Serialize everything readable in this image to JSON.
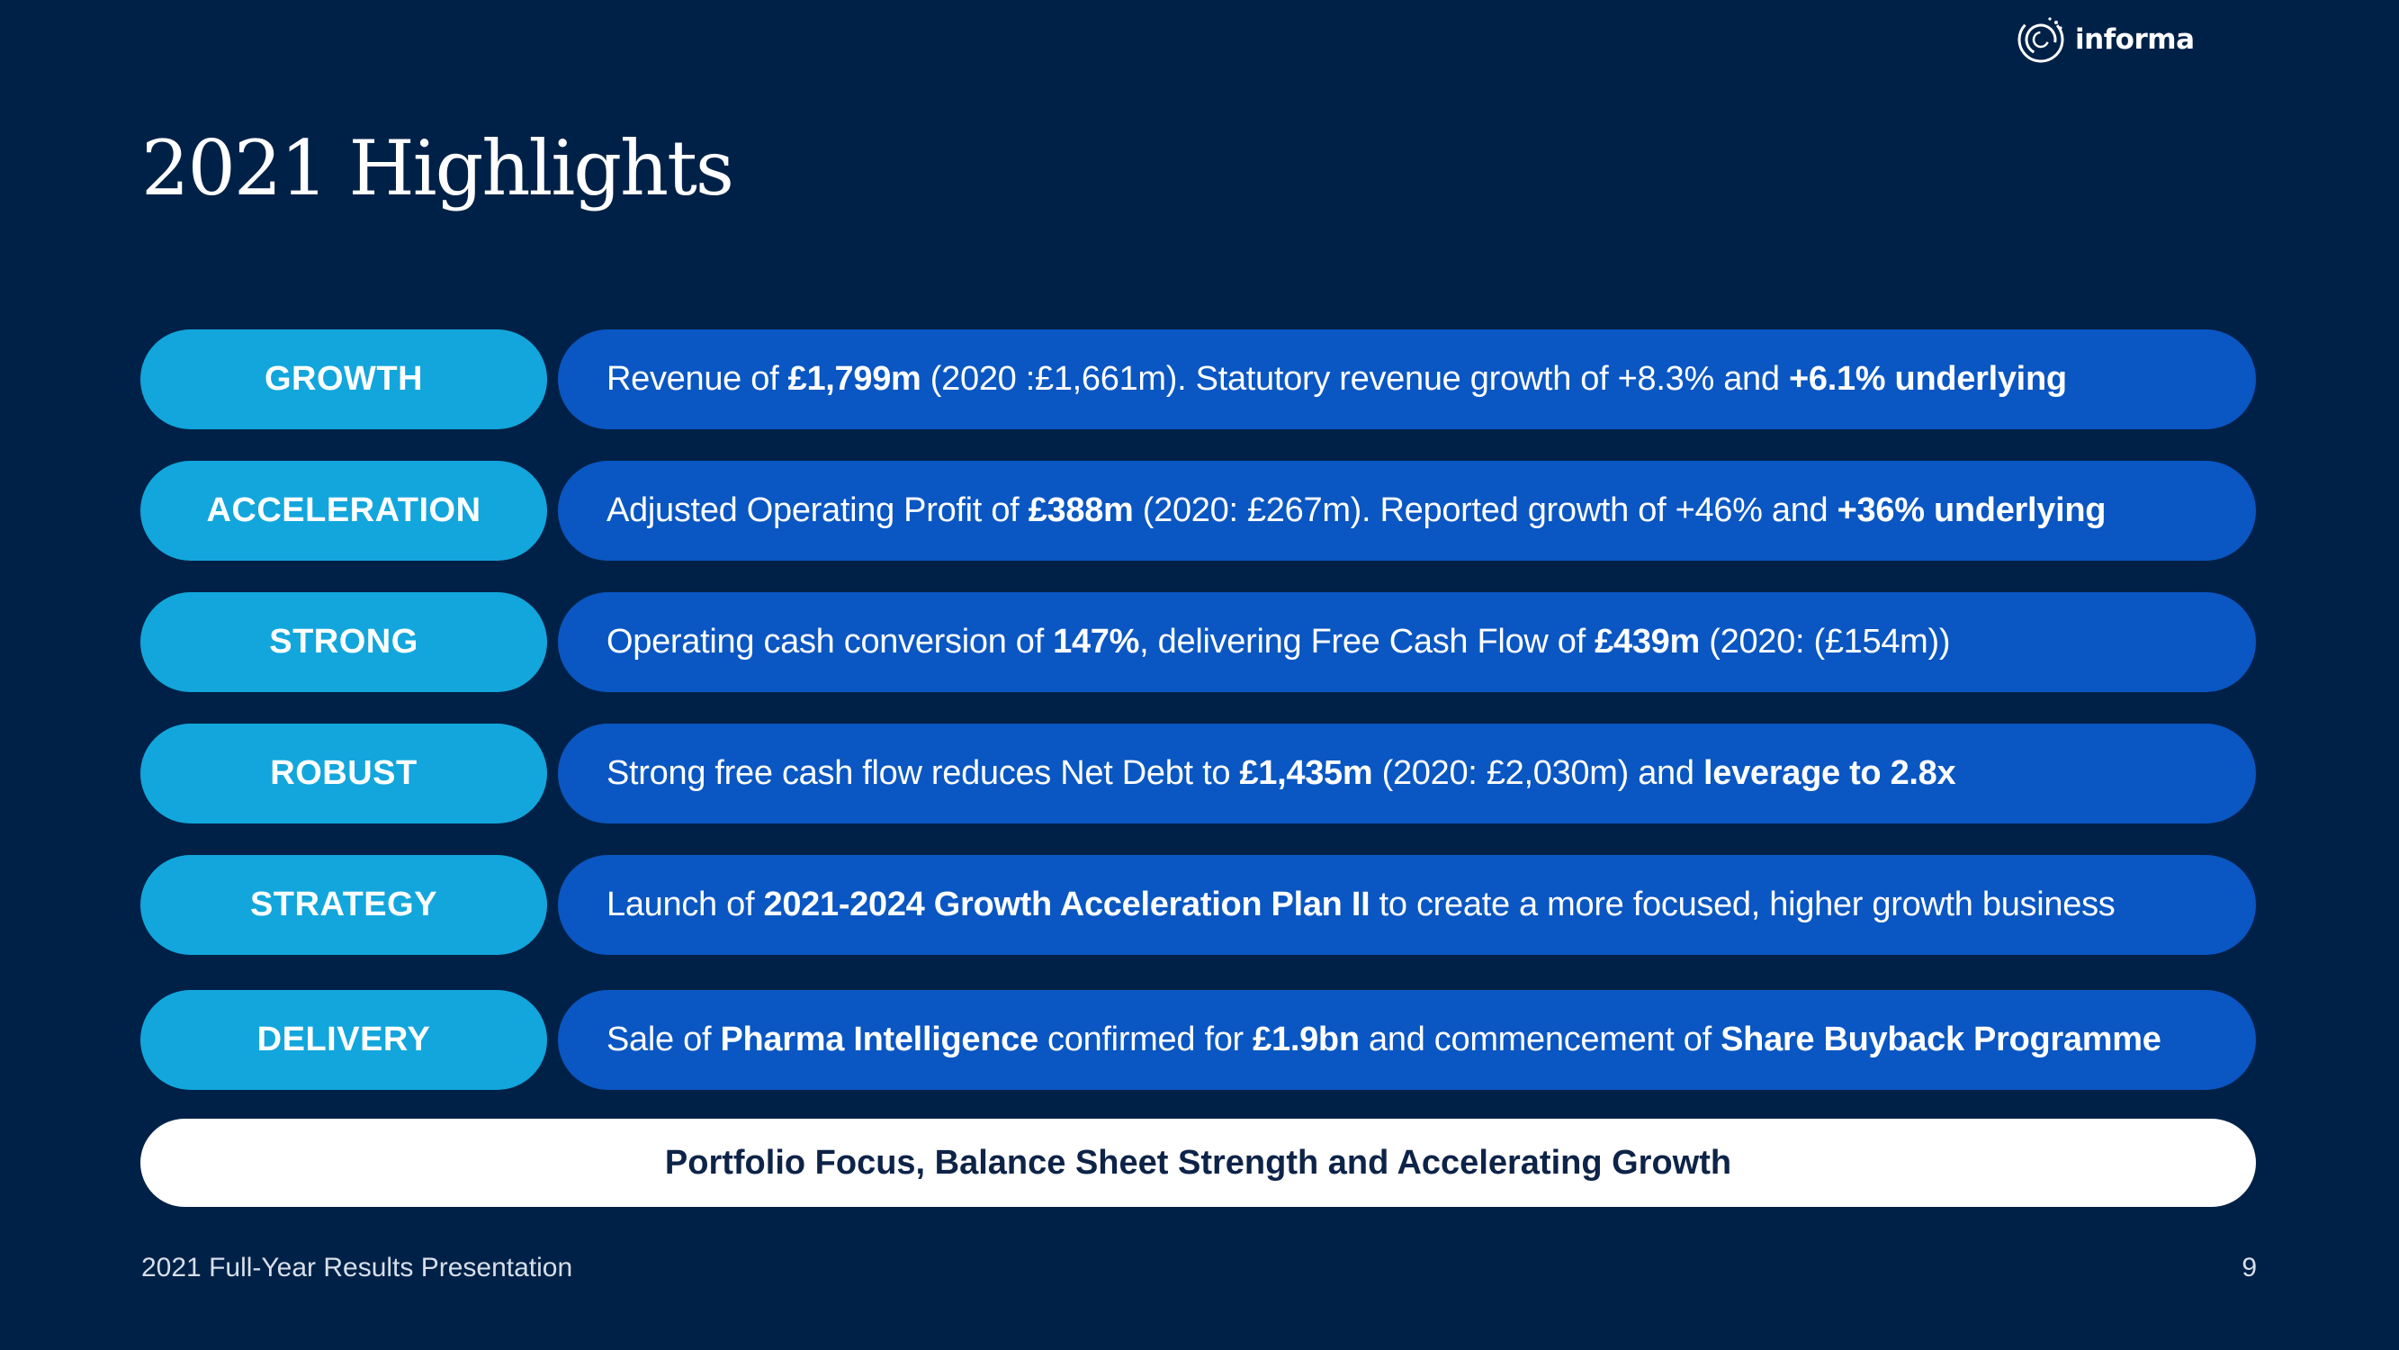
{
  "logo": {
    "text": "informa",
    "icon": "informa-logo-icon"
  },
  "title": "2021 Highlights",
  "rows": [
    {
      "label": "GROWTH",
      "parts": [
        {
          "t": "Revenue of ",
          "b": false
        },
        {
          "t": "£1,799m",
          "b": true
        },
        {
          "t": " (2020 :£1,661m). Statutory revenue growth of +8.3% and ",
          "b": false
        },
        {
          "t": "+6.1% underlying",
          "b": true
        }
      ]
    },
    {
      "label": "ACCELERATION",
      "parts": [
        {
          "t": "Adjusted Operating Profit of ",
          "b": false
        },
        {
          "t": "£388m",
          "b": true
        },
        {
          "t": " (2020: £267m). Reported growth of +46% and ",
          "b": false
        },
        {
          "t": "+36% underlying",
          "b": true
        }
      ]
    },
    {
      "label": "STRONG",
      "parts": [
        {
          "t": "Operating cash conversion of ",
          "b": false
        },
        {
          "t": "147%",
          "b": true
        },
        {
          "t": ", delivering Free Cash Flow of ",
          "b": false
        },
        {
          "t": "£439m",
          "b": true
        },
        {
          "t": " (2020: (£154m))",
          "b": false
        }
      ]
    },
    {
      "label": "ROBUST",
      "parts": [
        {
          "t": "Strong free cash flow reduces Net Debt to ",
          "b": false
        },
        {
          "t": "£1,435m",
          "b": true
        },
        {
          "t": " (2020: £2,030m) and ",
          "b": false
        },
        {
          "t": "leverage to 2.8x",
          "b": true
        }
      ]
    },
    {
      "label": "STRATEGY",
      "parts": [
        {
          "t": "Launch of ",
          "b": false
        },
        {
          "t": "2021-2024 Growth Acceleration Plan II",
          "b": true
        },
        {
          "t": " to create a more focused, higher growth business",
          "b": false
        }
      ]
    },
    {
      "label": "DELIVERY",
      "parts": [
        {
          "t": "Sale of ",
          "b": false
        },
        {
          "t": "Pharma Intelligence",
          "b": true
        },
        {
          "t": " confirmed for ",
          "b": false
        },
        {
          "t": "£1.9bn",
          "b": true
        },
        {
          "t": " and commencement of ",
          "b": false
        },
        {
          "t": "Share Buyback Programme",
          "b": true
        }
      ]
    }
  ],
  "summary": "Portfolio Focus, Balance Sheet Strength and Accelerating Growth",
  "footer": {
    "text": "2021 Full-Year Results Presentation",
    "page": "9"
  },
  "colors": {
    "background": "#002147",
    "pill": "#12a6dc",
    "bar": "#0a56c2",
    "summary_text": "#0e2348"
  }
}
